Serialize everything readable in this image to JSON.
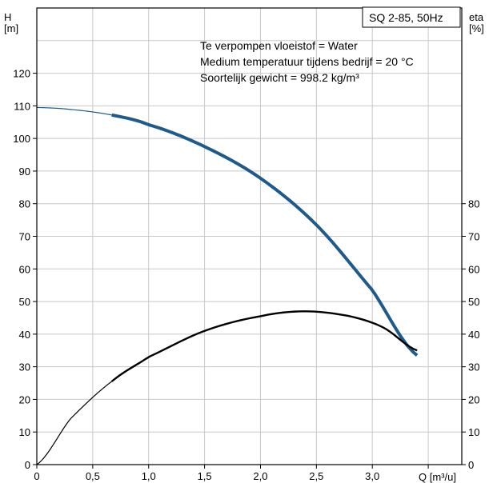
{
  "chart_data": {
    "type": "line",
    "model_label": "SQ 2-85, 50Hz",
    "notes": [
      "Te verpompen vloeistof = Water",
      "Medium temperatuur tijdens bedrijf = 20 °C",
      "Soortelijk gewicht = 998.2 kg/m³"
    ],
    "x_axis": {
      "unit": "Q [m³/u]",
      "range": [
        0,
        3.8
      ],
      "ticks": [
        0,
        0.5,
        1.0,
        1.5,
        2.0,
        2.5,
        3.0
      ],
      "tick_labels": [
        "0",
        "0,5",
        "1,0",
        "1,5",
        "2,0",
        "2,5",
        "3,0"
      ]
    },
    "y_left": {
      "label_top": "H",
      "label_unit": "[m]",
      "range": [
        0,
        140
      ],
      "ticks": [
        0,
        10,
        20,
        30,
        40,
        50,
        60,
        70,
        80,
        90,
        100,
        110,
        120
      ],
      "tick_labels": [
        "0",
        "10",
        "20",
        "30",
        "40",
        "50",
        "60",
        "70",
        "80",
        "90",
        "100",
        "110",
        "120"
      ]
    },
    "y_right": {
      "label_top": "eta",
      "label_unit": "[%]",
      "range": [
        0,
        140
      ],
      "ticks": [
        0,
        10,
        20,
        30,
        40,
        50,
        60,
        70,
        80
      ],
      "tick_labels": [
        "0",
        "10",
        "20",
        "30",
        "40",
        "50",
        "60",
        "70",
        "80"
      ]
    },
    "grid": true,
    "series": [
      {
        "key": "head",
        "axis": "left",
        "color": "#1e5a8c",
        "x": [
          0,
          0.3,
          0.67,
          1.0,
          1.5,
          2.0,
          2.5,
          3.0,
          3.4
        ],
        "values": [
          109.5,
          108.9,
          107.2,
          104.2,
          97.5,
          87.8,
          73.5,
          53.5,
          33.5
        ],
        "bold_from_x": 0.67
      },
      {
        "key": "efficiency",
        "axis": "right",
        "color": "#000000",
        "x": [
          0,
          0.3,
          0.67,
          1.0,
          1.5,
          2.0,
          2.4,
          2.8,
          3.1,
          3.4
        ],
        "values": [
          0,
          14,
          25.5,
          33,
          41,
          45.5,
          47,
          45.5,
          42,
          35
        ],
        "bold_from_x": 0.67
      }
    ]
  }
}
